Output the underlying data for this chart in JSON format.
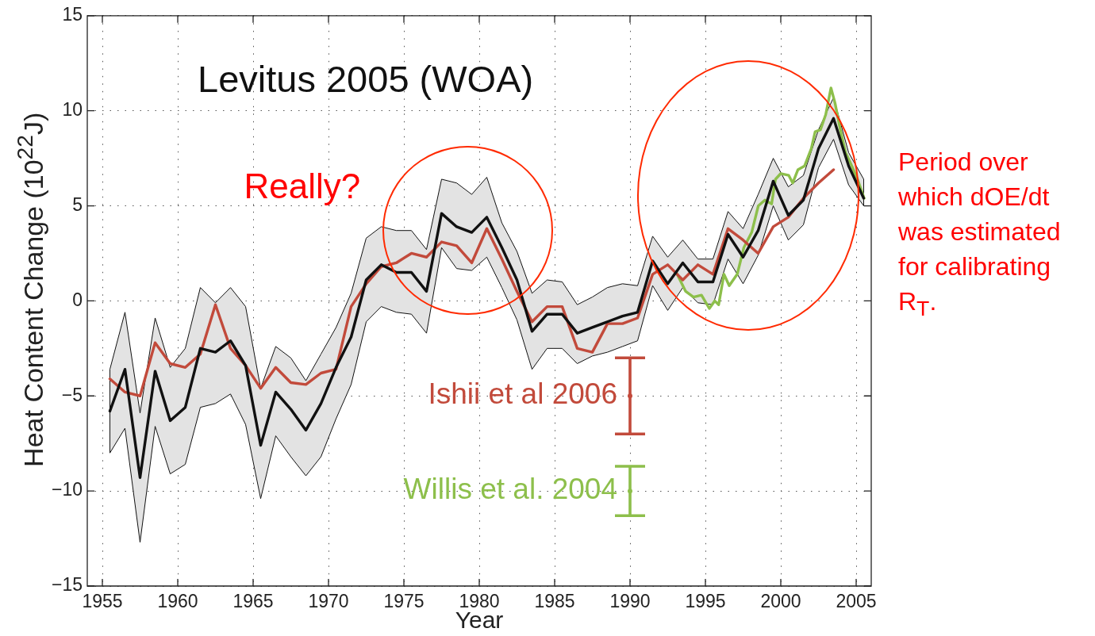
{
  "chart_data": {
    "type": "line",
    "xlabel": "Year",
    "ylabel": "Heat Content Change (10$^{22}$J)",
    "annotations": [
      "Really?",
      "Period over which dOE/dt was estimated for calibrating R$_{T}$."
    ],
    "xlim": [
      1954,
      2006
    ],
    "xticks": [
      1955,
      1960,
      1965,
      1970,
      1975,
      1980,
      1985,
      1990,
      1995,
      2000,
      2005
    ],
    "ylim": [
      -15,
      15
    ],
    "yticks": [
      {
        "value": -15,
        "label": "−15"
      },
      {
        "value": -10,
        "label": "−10"
      },
      {
        "value": -5,
        "label": "−5"
      },
      0,
      5,
      10,
      15
    ],
    "grid": true,
    "series": [
      {
        "name": "Levitus 2005 (WOA)",
        "color": "#111111",
        "x": [
          1955.5,
          1956.5,
          1957.5,
          1958.5,
          1959.5,
          1960.5,
          1961.5,
          1962.5,
          1963.5,
          1964.5,
          1965.5,
          1966.5,
          1967.5,
          1968.5,
          1969.5,
          1970.5,
          1971.5,
          1972.5,
          1973.5,
          1974.5,
          1975.5,
          1976.5,
          1977.5,
          1978.5,
          1979.5,
          1980.5,
          1981.5,
          1982.5,
          1983.5,
          1984.5,
          1985.5,
          1986.5,
          1987.5,
          1988.5,
          1989.5,
          1990.5,
          1991.5,
          1992.5,
          1993.5,
          1994.5,
          1995.5,
          1996.5,
          1997.5,
          1998.5,
          1999.5,
          2000.5,
          2001.5,
          2002.5,
          2003.5,
          2004.5,
          2005.5
        ],
        "values": [
          -5.8,
          -3.6,
          -9.3,
          -3.7,
          -6.3,
          -5.6,
          -2.5,
          -2.7,
          -2.1,
          -3.4,
          -7.6,
          -4.8,
          -5.7,
          -6.8,
          -5.4,
          -3.5,
          -1.9,
          1.1,
          1.9,
          1.5,
          1.5,
          0.5,
          4.6,
          3.9,
          3.6,
          4.4,
          2.8,
          1.1,
          -1.6,
          -0.7,
          -0.7,
          -1.7,
          -1.4,
          -1.1,
          -0.8,
          -0.6,
          2.1,
          0.9,
          2.0,
          1.0,
          1.0,
          3.5,
          2.3,
          3.7,
          6.3,
          4.5,
          5.3,
          8.0,
          9.6,
          7.1,
          5.4
        ],
        "lower": [
          -8.0,
          -6.7,
          -12.7,
          -6.6,
          -9.1,
          -8.6,
          -5.6,
          -5.4,
          -4.9,
          -6.5,
          -10.4,
          -7.1,
          -8.2,
          -9.2,
          -8.2,
          -6.2,
          -4.4,
          -1.1,
          -0.3,
          -0.6,
          -0.7,
          -1.7,
          2.8,
          1.7,
          1.6,
          2.3,
          0.7,
          -1.0,
          -3.6,
          -2.5,
          -2.5,
          -3.3,
          -2.9,
          -2.7,
          -2.4,
          -2.1,
          0.8,
          -0.5,
          0.7,
          -0.1,
          -0.2,
          2.2,
          0.9,
          2.4,
          5.0,
          3.2,
          4.0,
          7.0,
          8.5,
          6.1,
          5.0
        ],
        "upper": [
          -3.6,
          -0.6,
          -5.9,
          -0.9,
          -3.5,
          -2.5,
          0.7,
          -0.1,
          0.7,
          -0.3,
          -4.6,
          -2.4,
          -3.0,
          -4.2,
          -2.8,
          -1.4,
          0.4,
          3.3,
          3.9,
          3.7,
          3.7,
          2.7,
          6.4,
          6.2,
          5.6,
          6.5,
          4.1,
          2.6,
          0.4,
          1.1,
          1.0,
          -0.2,
          0.2,
          0.7,
          0.9,
          0.8,
          3.4,
          2.3,
          3.2,
          2.2,
          2.2,
          4.7,
          3.8,
          5.6,
          7.5,
          6.0,
          6.6,
          9.0,
          10.7,
          7.8,
          6.4
        ]
      },
      {
        "color": "#c24a3b",
        "x": [
          1955.5,
          1956.5,
          1957.5,
          1958.5,
          1959.5,
          1960.5,
          1961.5,
          1962.5,
          1963.5,
          1964.5,
          1965.5,
          1966.5,
          1967.5,
          1968.5,
          1969.5,
          1970.5,
          1971.5,
          1972.5,
          1973.5,
          1974.5,
          1975.5,
          1976.5,
          1977.5,
          1978.5,
          1979.5,
          1980.5,
          1981.5,
          1982.5,
          1983.5,
          1984.5,
          1985.5,
          1986.5,
          1987.5,
          1988.5,
          1989.5,
          1990.5,
          1991.5,
          1992.5,
          1993.5,
          1994.5,
          1995.5,
          1996.5,
          1997.5,
          1998.5,
          1999.5,
          2000.5,
          2001.5,
          2002.5,
          2003.5
        ],
        "values": [
          -4.1,
          -4.8,
          -5.0,
          -2.2,
          -3.3,
          -3.5,
          -2.8,
          -0.2,
          -2.5,
          -3.4,
          -4.6,
          -3.5,
          -4.3,
          -4.4,
          -3.8,
          -3.6,
          -0.3,
          0.9,
          1.8,
          2.0,
          2.5,
          2.3,
          3.1,
          2.9,
          2.0,
          3.8,
          2.2,
          0.5,
          -1.1,
          -0.3,
          -0.3,
          -2.5,
          -2.7,
          -1.2,
          -1.2,
          -0.9,
          1.4,
          1.9,
          1.1,
          1.9,
          1.4,
          3.8,
          3.2,
          2.5,
          3.9,
          4.4,
          5.4,
          6.2,
          6.9
        ]
      },
      {
        "color": "#8dbf4b",
        "x": [
          1993.07,
          1993.69,
          1994.21,
          1994.74,
          1995.26,
          1995.62,
          1995.88,
          1996.23,
          1996.58,
          1997.11,
          1997.55,
          1998.07,
          1998.51,
          1998.95,
          1999.39,
          1999.65,
          2000.0,
          2000.53,
          2000.79,
          2001.14,
          2001.58,
          2002.02,
          2002.28,
          2002.63,
          2002.98,
          2003.33,
          2003.6,
          2003.95,
          2004.3,
          2004.65,
          2005.09,
          2005.53
        ],
        "values": [
          1.5,
          0.5,
          0.2,
          0.3,
          -0.4,
          0.0,
          -0.2,
          1.4,
          0.8,
          1.4,
          2.8,
          3.6,
          5.0,
          5.3,
          5.1,
          6.4,
          6.7,
          6.6,
          6.2,
          6.9,
          7.1,
          8.0,
          8.9,
          9.0,
          9.8,
          11.2,
          10.4,
          9.0,
          7.8,
          7.2,
          6.4,
          5.4
        ]
      },
      {
        "name": "Ishii et al 2006",
        "type": "scatter",
        "color": "#c24a3b",
        "x": [
          1990
        ],
        "values": [
          -5
        ],
        "errors": [
          2
        ]
      },
      {
        "name": "Willis et al. 2004",
        "type": "scatter",
        "color": "#8dbf4b",
        "x": [
          1990
        ],
        "values": [
          -10
        ],
        "errors": [
          1.3
        ]
      }
    ]
  }
}
